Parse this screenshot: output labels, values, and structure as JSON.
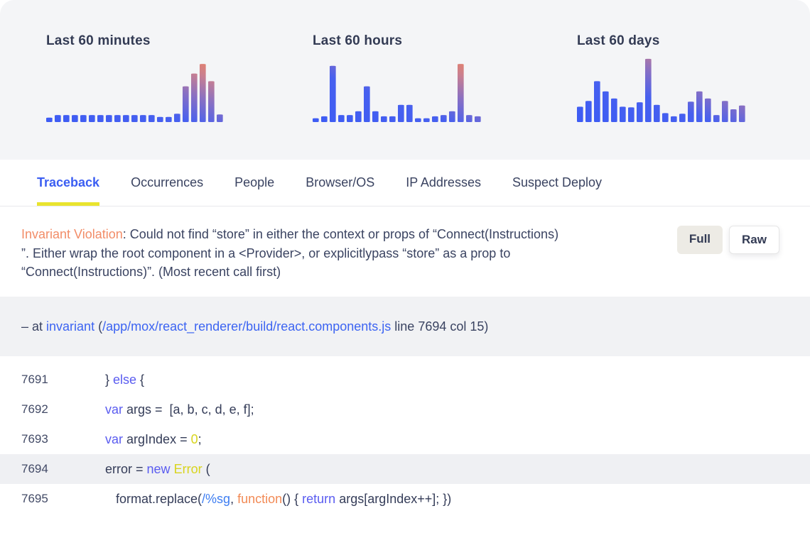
{
  "chart_data": [
    {
      "type": "bar",
      "title": "Last 60 minutes",
      "values": [
        7,
        11,
        11,
        11,
        11,
        11,
        11,
        11,
        11,
        11,
        11,
        11,
        11,
        8,
        8,
        13,
        56,
        76,
        91,
        64,
        12
      ],
      "ylim": [
        0,
        100
      ],
      "legend": "none",
      "gridlines": false,
      "gradient": [
        "#3d5cf4",
        "#4760ef",
        "#8a70c2",
        "#c97f90",
        "#f58355"
      ]
    },
    {
      "type": "bar",
      "title": "Last 60 hours",
      "values": [
        6,
        9,
        88,
        11,
        11,
        17,
        56,
        17,
        9,
        9,
        27,
        27,
        6,
        6,
        9,
        11,
        17,
        91,
        11,
        9
      ],
      "ylim": [
        0,
        100
      ],
      "legend": "none",
      "gridlines": false,
      "gradient": [
        "#3d5cf4",
        "#4760ef",
        "#8a70c2",
        "#c97f90",
        "#f58355"
      ]
    },
    {
      "type": "bar",
      "title": "Last 60 days",
      "values": [
        24,
        33,
        64,
        48,
        37,
        24,
        23,
        31,
        99,
        27,
        14,
        9,
        13,
        32,
        48,
        37,
        11,
        33,
        20,
        26
      ],
      "ylim": [
        0,
        100
      ],
      "legend": "none",
      "gridlines": false,
      "gradient": [
        "#3d5cf4",
        "#4760ef",
        "#8a70c2",
        "#c97f90",
        "#f58355"
      ]
    }
  ],
  "tabs": [
    {
      "label": "Traceback",
      "active": true
    },
    {
      "label": "Occurrences",
      "active": false
    },
    {
      "label": "People",
      "active": false
    },
    {
      "label": "Browser/OS",
      "active": false
    },
    {
      "label": "IP Addresses",
      "active": false
    },
    {
      "label": "Suspect Deploy",
      "active": false
    }
  ],
  "error": {
    "lines": [
      [
        [
          "tk-error",
          "Invariant Violation"
        ],
        [
          "tk-plain",
          ": Could not find “store” in either the context or props of “Connect(Instructions)"
        ]
      ],
      [
        [
          "tk-plain",
          "”. Either wrap the root component in a <Provider>, or explicitlypass “store” as a prop to"
        ]
      ],
      [
        [
          "tk-plain",
          "“Connect(Instructions)”. (Most recent call first)"
        ]
      ]
    ],
    "buttons": [
      {
        "label": "Full",
        "active": true
      },
      {
        "label": "Raw",
        "active": false
      }
    ]
  },
  "frame": {
    "tokens": [
      [
        "tk-plain",
        "– at "
      ],
      [
        "tk-link",
        "invariant"
      ],
      [
        "tk-plain",
        " ("
      ],
      [
        "tk-link",
        "/app/mox/react_renderer/build/react.components.js"
      ],
      [
        "tk-plain",
        " line 7694 col 15)"
      ]
    ]
  },
  "code": {
    "lines": [
      {
        "num": "7691",
        "highlighted": false,
        "tokens": [
          [
            "tk-plain",
            "} "
          ],
          [
            "tk-kw",
            "else"
          ],
          [
            "tk-plain",
            " {"
          ]
        ]
      },
      {
        "num": "7692",
        "highlighted": false,
        "tokens": [
          [
            "tk-kw",
            "var"
          ],
          [
            "tk-plain",
            " args =  [a, b, c, d, e, f];"
          ]
        ]
      },
      {
        "num": "7693",
        "highlighted": false,
        "tokens": [
          [
            "tk-kw",
            "var"
          ],
          [
            "tk-plain",
            " argIndex = "
          ],
          [
            "tk-num",
            "0"
          ],
          [
            "tk-plain",
            ";"
          ]
        ]
      },
      {
        "num": "7694",
        "highlighted": true,
        "tokens": [
          [
            "tk-plain",
            "error = "
          ],
          [
            "tk-kw",
            "new"
          ],
          [
            "tk-plain",
            " "
          ],
          [
            "tk-num",
            "Error"
          ],
          [
            "tk-plain",
            " ("
          ]
        ]
      },
      {
        "num": "7695",
        "highlighted": false,
        "tokens": [
          [
            "tk-plain",
            "   format.replace("
          ],
          [
            "tk-regex",
            "/%sg"
          ],
          [
            "tk-plain",
            ", "
          ],
          [
            "tk-fn",
            "function"
          ],
          [
            "tk-plain",
            "() { "
          ],
          [
            "tk-kw",
            "return"
          ],
          [
            "tk-plain",
            " args[argIndex++]; })"
          ]
        ]
      }
    ]
  },
  "colors": {
    "card_bg": "#f4f5f7",
    "active_tab": "#3b5ef2",
    "tab_underline": "#e9e42e",
    "error_type": "#f28d68",
    "keyword": "#5a5cf0",
    "literal_yellow": "#d8d41d",
    "function_orange": "#f28a55",
    "regex_blue": "#3e7ef2",
    "link_blue": "#3c64f2",
    "frame_band_bg": "#f1f2f4",
    "highlight_row_bg": "#eff0f3",
    "bar_gradient_start": "#3d5cf4",
    "bar_gradient_end": "#f58355"
  }
}
